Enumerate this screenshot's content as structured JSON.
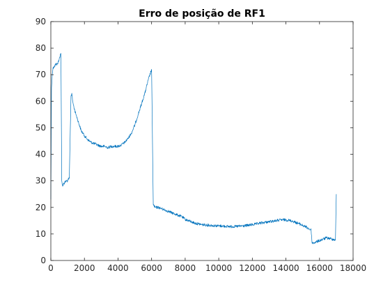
{
  "chart_data": {
    "type": "line",
    "title": "Erro de posição de RF1",
    "xlabel": "",
    "ylabel": "",
    "xlim": [
      0,
      18000
    ],
    "ylim": [
      0,
      90
    ],
    "x_ticks": [
      0,
      2000,
      4000,
      6000,
      8000,
      10000,
      12000,
      14000,
      16000,
      18000
    ],
    "y_ticks": [
      0,
      10,
      20,
      30,
      40,
      50,
      60,
      70,
      80,
      90
    ],
    "grid": false,
    "legend": "none",
    "colors": {
      "series": "#0072BD",
      "axes": "#262626",
      "background": "#ffffff"
    },
    "series": [
      {
        "x": [
          0,
          40,
          80,
          120,
          160,
          200,
          300,
          400,
          500,
          600,
          650,
          700,
          750,
          800,
          900,
          1000,
          1100,
          1200,
          1250,
          1300,
          1400,
          1500,
          1600,
          1700,
          1800,
          1900,
          2000,
          2200,
          2400,
          2600,
          2800,
          3000,
          3200,
          3400,
          3600,
          3800,
          4000,
          4200,
          4400,
          4600,
          4800,
          5000,
          5200,
          5400,
          5600,
          5800,
          6000,
          6100,
          6150,
          6200,
          6400,
          6600,
          6800,
          7000,
          7200,
          7400,
          7600,
          7800,
          8000,
          8200,
          8400,
          8600,
          8800,
          9000,
          9200,
          9400,
          9600,
          9800,
          10000,
          10200,
          10400,
          10600,
          10800,
          11000,
          11200,
          11400,
          11600,
          11800,
          12000,
          12200,
          12400,
          12600,
          12800,
          13000,
          13200,
          13400,
          13600,
          13800,
          14000,
          14200,
          14400,
          14600,
          14800,
          15000,
          15200,
          15400,
          15500,
          15550,
          15600,
          15800,
          16000,
          16200,
          16400,
          16600,
          16800,
          16950,
          17000
        ],
        "y": [
          23,
          65,
          70,
          72,
          73,
          73,
          74,
          74,
          76,
          78,
          30,
          28,
          29,
          29,
          30,
          30,
          31,
          62,
          63,
          60,
          57,
          55,
          53,
          51,
          49,
          48,
          47,
          45.5,
          44.5,
          44,
          43.5,
          43,
          43,
          42.5,
          43,
          43,
          43,
          43.5,
          44.5,
          46,
          48,
          51,
          55,
          59,
          63,
          68,
          72,
          21,
          20.5,
          20,
          20,
          19.5,
          19,
          18.5,
          18,
          17.5,
          17,
          16.5,
          15.5,
          15,
          14.5,
          14,
          13.8,
          13.5,
          13.4,
          13.3,
          13.2,
          13.1,
          13,
          13,
          12.9,
          12.8,
          12.8,
          12.8,
          12.9,
          13,
          13.1,
          13.3,
          13.5,
          13.7,
          14,
          14.2,
          14.4,
          14.6,
          14.8,
          15,
          15.2,
          15.3,
          15.3,
          15.1,
          14.8,
          14.3,
          13.8,
          13.2,
          12.6,
          11.8,
          11.5,
          7,
          6.5,
          7,
          7.5,
          8,
          8.5,
          8.3,
          8,
          7.8,
          25
        ]
      }
    ]
  }
}
